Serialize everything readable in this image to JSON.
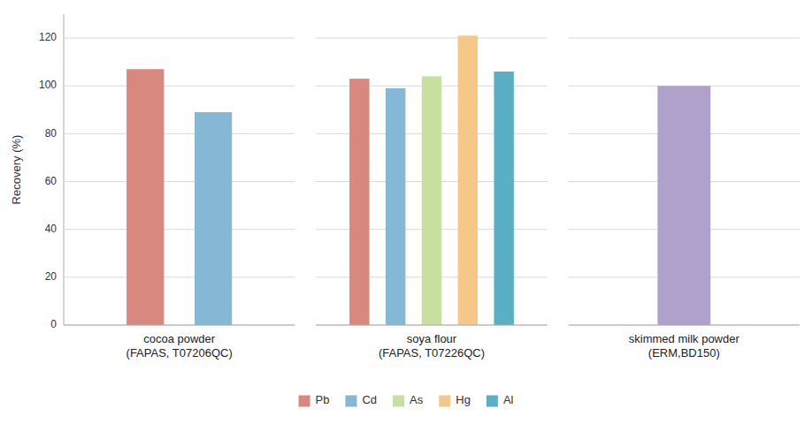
{
  "chart_data": {
    "type": "bar",
    "categories": [
      "cocoa powder\n(FAPAS, T07206QC)",
      "soya flour\n(FAPAS, T07226QC)",
      "skimmed milk powder\n(ERM,BD150)"
    ],
    "series": [
      {
        "name": "Pb",
        "color": "#D98880",
        "colors": [
          "#D98880",
          "#D98880",
          null
        ],
        "values": [
          107,
          103,
          null
        ]
      },
      {
        "name": "Cd",
        "color": "#85B8D4",
        "colors": [
          "#85B8D4",
          "#85B8D4",
          null
        ],
        "values": [
          89,
          99,
          null
        ]
      },
      {
        "name": "As",
        "color": "#C8DFA0",
        "colors": [
          null,
          "#C8DFA0",
          null
        ],
        "values": [
          null,
          104,
          null
        ]
      },
      {
        "name": "Hg",
        "color": "#F5C88A",
        "colors": [
          null,
          "#F5C88A",
          null
        ],
        "values": [
          null,
          121,
          null
        ]
      },
      {
        "name": "Al",
        "color": "#5BAFC5",
        "colors": [
          null,
          "#5BAFC5",
          "#B0A0CC"
        ],
        "values": [
          null,
          106,
          100
        ]
      }
    ],
    "ylabel": "Recovery (%)",
    "ylim": [
      0,
      130
    ],
    "yticks": [
      0,
      20,
      40,
      60,
      80,
      100,
      120
    ],
    "grid": true,
    "legend": "bottom"
  }
}
